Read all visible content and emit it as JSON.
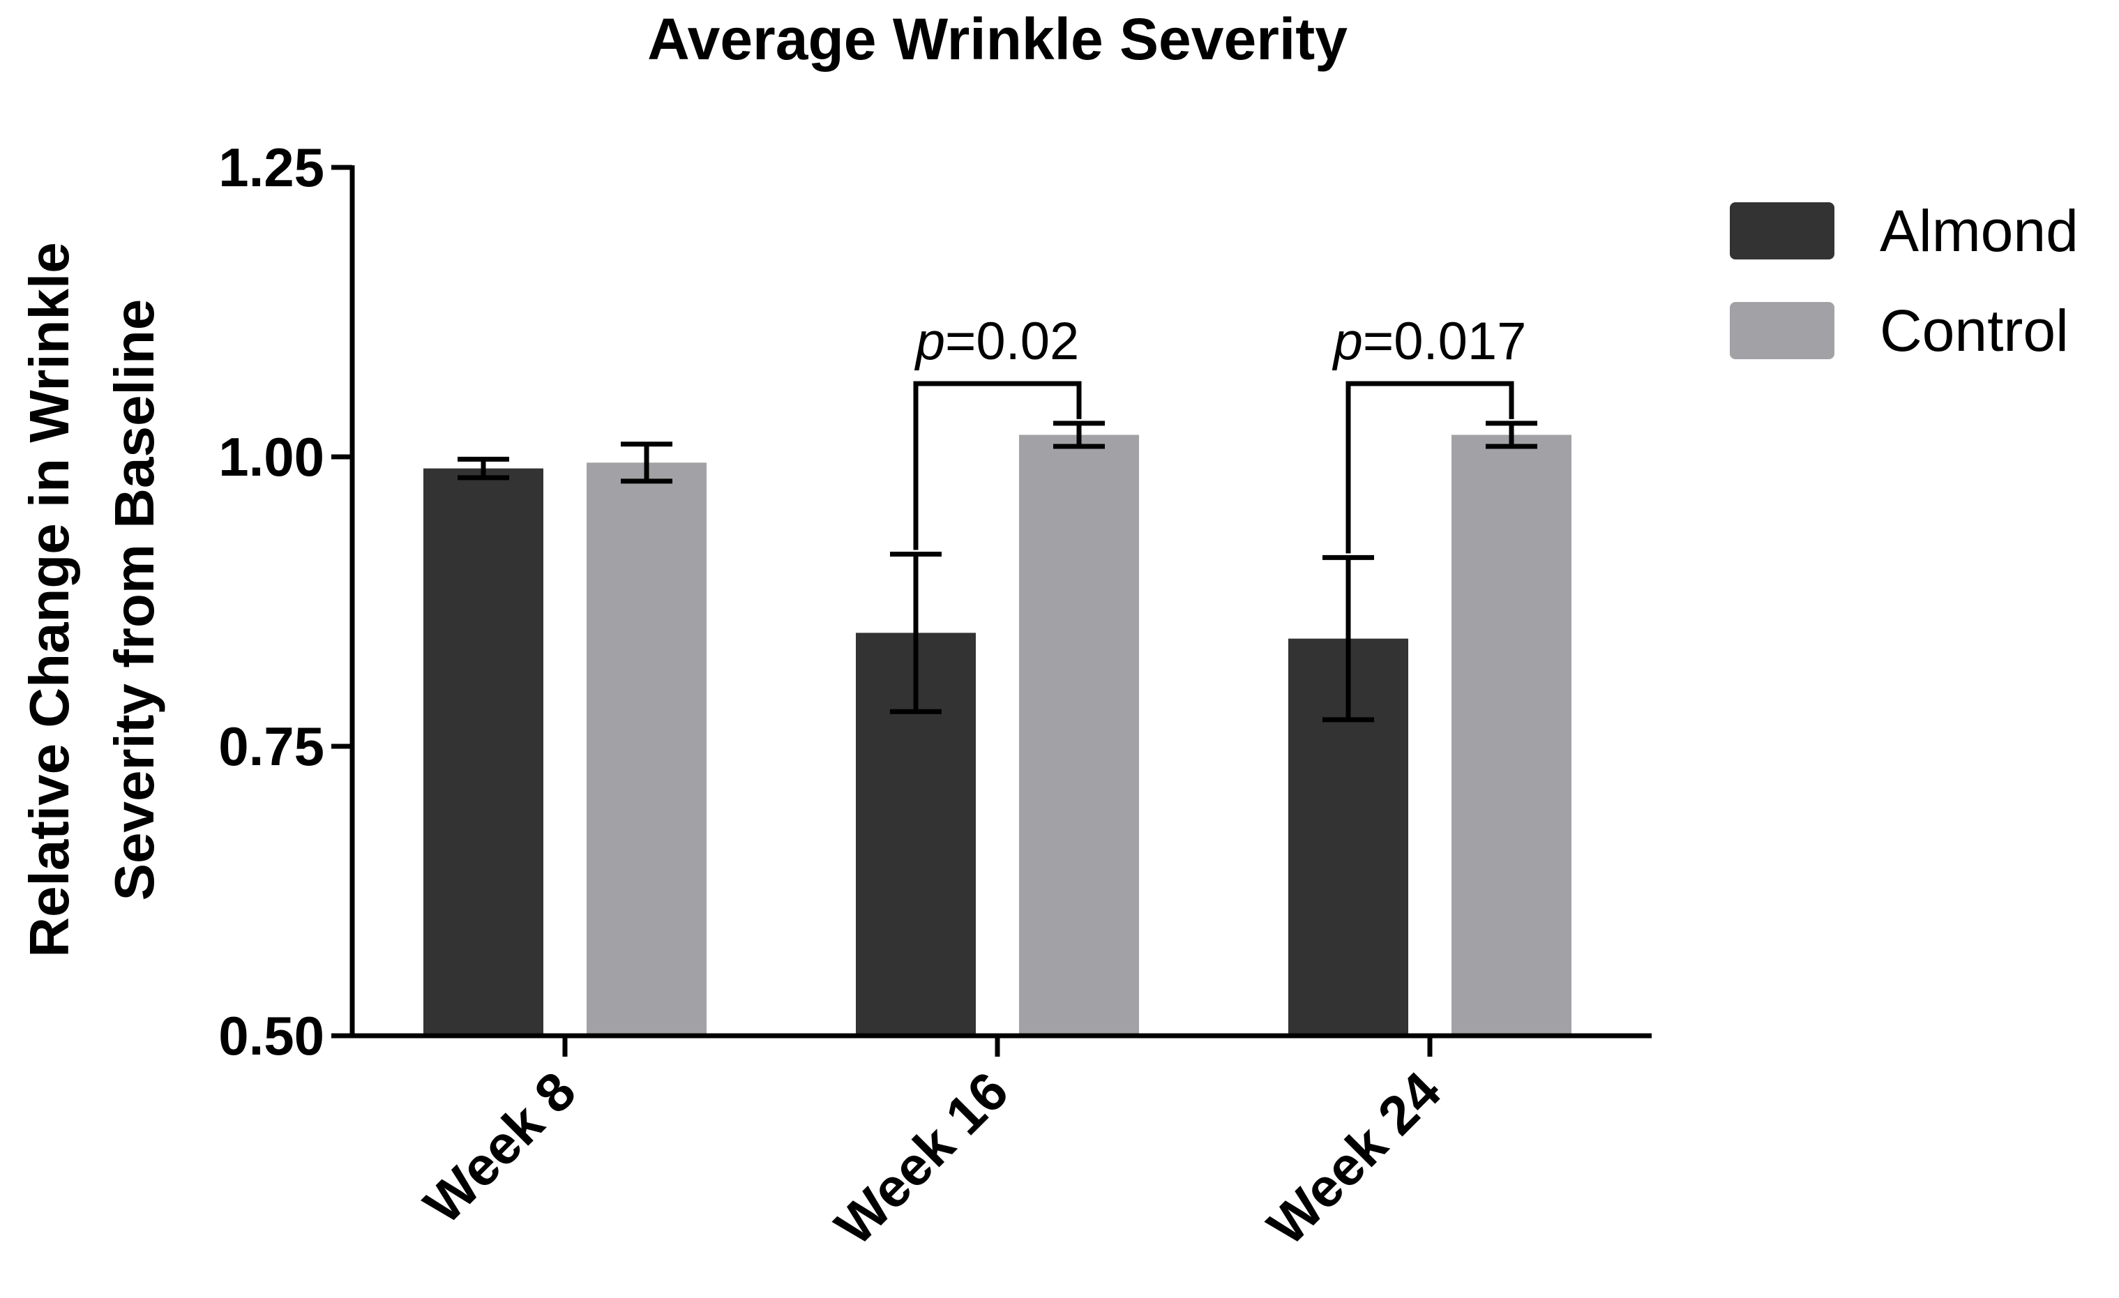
{
  "chart_data": {
    "type": "bar",
    "title": "Average Wrinkle Severity",
    "xlabel": "",
    "ylabel_lines": [
      "Relative Change in Wrinkle",
      "Severity from Baseline"
    ],
    "ylim": [
      0.5,
      1.25
    ],
    "yticks": [
      {
        "value": 0.5,
        "label": "0.50"
      },
      {
        "value": 0.75,
        "label": "0.75"
      },
      {
        "value": 1.0,
        "label": "1.00"
      },
      {
        "value": 1.25,
        "label": "1.25"
      }
    ],
    "categories": [
      "Week 8",
      "Week 16",
      "Week 24"
    ],
    "series": [
      {
        "name": "Almond",
        "color": "#333333",
        "values": [
          0.99,
          0.848,
          0.843
        ],
        "errors": [
          0.008,
          0.068,
          0.07
        ]
      },
      {
        "name": "Control",
        "color": "#a2a2a6",
        "values": [
          0.995,
          1.019,
          1.019
        ],
        "errors": [
          0.016,
          0.01,
          0.01
        ]
      }
    ],
    "annotations": [
      {
        "category_index": 1,
        "text_italic": "p",
        "text_rest": "=0.02"
      },
      {
        "category_index": 2,
        "text_italic": "p",
        "text_rest": "=0.017"
      }
    ],
    "legend_position": "top-right"
  }
}
